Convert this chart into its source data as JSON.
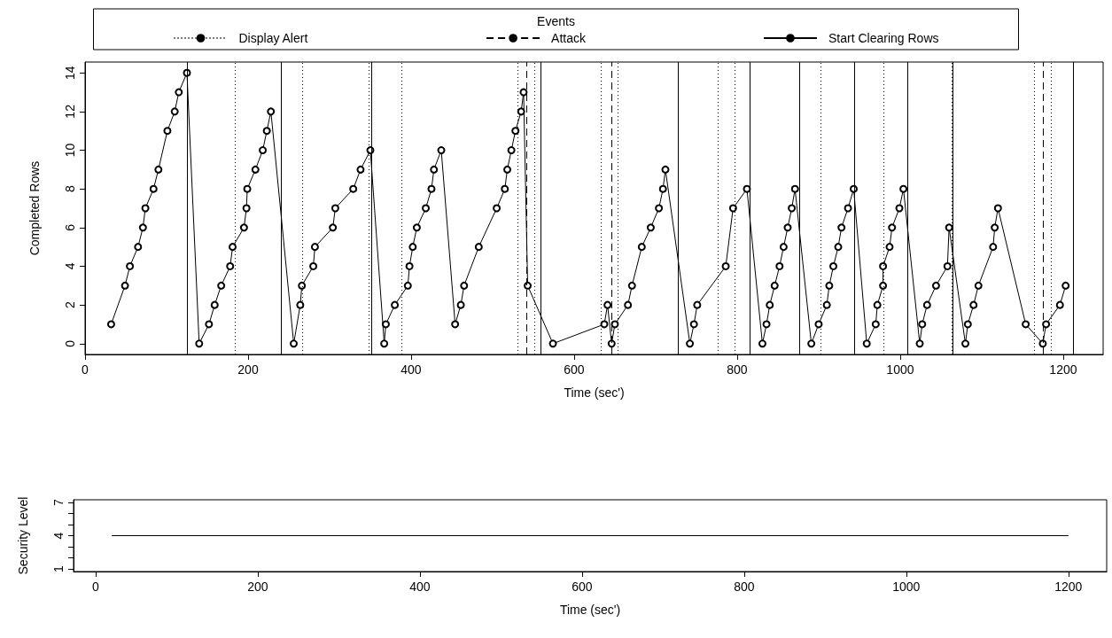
{
  "chart_data": [
    {
      "type": "line",
      "xlabel": "Time (sec')",
      "ylabel": "Completed Rows",
      "legend_title": "Events",
      "legend": "top",
      "marker": "circle",
      "line_style": "solid",
      "xlim": [
        0,
        1249
      ],
      "xticks": [
        0,
        200,
        400,
        600,
        800,
        1000,
        1200
      ],
      "ylim": [
        -0.56,
        14.56
      ],
      "yticks": [
        0,
        2,
        4,
        6,
        8,
        10,
        12,
        14
      ],
      "series": [
        {
          "color": "#000000",
          "x": [
            32,
            49,
            55,
            65,
            71,
            74,
            84,
            90,
            101,
            110,
            115,
            125,
            140,
            152,
            159,
            167,
            178,
            181,
            195,
            198,
            199,
            209,
            218,
            223,
            228,
            256,
            264,
            266,
            280,
            282,
            304,
            307,
            329,
            338,
            350,
            367,
            369,
            380,
            396,
            398,
            402,
            407,
            418,
            425,
            428,
            437,
            454,
            461,
            465,
            483,
            505,
            515,
            518,
            523,
            528,
            535,
            538,
            543,
            574,
            637,
            641,
            646,
            650,
            666,
            671,
            683,
            694,
            704,
            709,
            712,
            742,
            747,
            751,
            786,
            795,
            812,
            831,
            836,
            840,
            846,
            852,
            857,
            862,
            867,
            871,
            891,
            900,
            910,
            913,
            918,
            924,
            928,
            936,
            943,
            959,
            970,
            972,
            979,
            979,
            987,
            990,
            999,
            1004,
            1024,
            1027,
            1033,
            1044,
            1058,
            1060,
            1080,
            1083,
            1090,
            1096,
            1114,
            1116,
            1120,
            1154,
            1175,
            1179,
            1196,
            1203
          ],
          "values": [
            1,
            3,
            4,
            5,
            6,
            7,
            8,
            9,
            11,
            12,
            13,
            14,
            0,
            1,
            2,
            3,
            4,
            5,
            6,
            7,
            8,
            9,
            10,
            11,
            12,
            0,
            2,
            3,
            4,
            5,
            6,
            7,
            8,
            9,
            10,
            0,
            1,
            2,
            3,
            4,
            5,
            6,
            7,
            8,
            9,
            10,
            1,
            2,
            3,
            5,
            7,
            8,
            9,
            10,
            11,
            12,
            13,
            3,
            0,
            1,
            2,
            0,
            1,
            2,
            3,
            5,
            6,
            7,
            8,
            9,
            0,
            1,
            2,
            4,
            7,
            8,
            0,
            1,
            2,
            3,
            4,
            5,
            6,
            7,
            8,
            0,
            1,
            2,
            3,
            4,
            5,
            6,
            7,
            8,
            0,
            1,
            2,
            3,
            4,
            5,
            6,
            7,
            8,
            0,
            1,
            2,
            3,
            4,
            6,
            0,
            1,
            2,
            3,
            5,
            6,
            7,
            1,
            0,
            1,
            2,
            3
          ]
        }
      ],
      "ref_lines": [
        {
          "axis": "x",
          "value": 184,
          "label": "Display Alert",
          "line_style": "dotted",
          "color": "#000000"
        },
        {
          "axis": "x",
          "value": 267,
          "line_style": "dotted",
          "color": "#000000"
        },
        {
          "axis": "x",
          "value": 348,
          "line_style": "dotted",
          "color": "#000000"
        },
        {
          "axis": "x",
          "value": 388,
          "line_style": "dotted",
          "color": "#000000"
        },
        {
          "axis": "x",
          "value": 531,
          "line_style": "dotted",
          "color": "#000000"
        },
        {
          "axis": "x",
          "value": 551,
          "line_style": "dotted",
          "color": "#000000"
        },
        {
          "axis": "x",
          "value": 633,
          "line_style": "dotted",
          "color": "#000000"
        },
        {
          "axis": "x",
          "value": 654,
          "line_style": "dotted",
          "color": "#000000"
        },
        {
          "axis": "x",
          "value": 776,
          "line_style": "dotted",
          "color": "#000000"
        },
        {
          "axis": "x",
          "value": 797,
          "line_style": "dotted",
          "color": "#000000"
        },
        {
          "axis": "x",
          "value": 902,
          "line_style": "dotted",
          "color": "#000000"
        },
        {
          "axis": "x",
          "value": 980,
          "line_style": "dotted",
          "color": "#000000"
        },
        {
          "axis": "x",
          "value": 1063,
          "line_style": "dotted",
          "color": "#000000"
        },
        {
          "axis": "x",
          "value": 1164,
          "line_style": "dotted",
          "color": "#000000"
        },
        {
          "axis": "x",
          "value": 1185,
          "line_style": "dotted",
          "color": "#000000"
        },
        {
          "axis": "x",
          "value": 542,
          "label": "Attack",
          "line_style": "dashed",
          "color": "#000000"
        },
        {
          "axis": "x",
          "value": 646,
          "line_style": "dashed",
          "color": "#000000"
        },
        {
          "axis": "x",
          "value": 1175,
          "line_style": "dashed",
          "color": "#000000"
        },
        {
          "axis": "x",
          "value": 125,
          "label": "Start Clearing Rows",
          "line_style": "solid",
          "color": "#000000"
        },
        {
          "axis": "x",
          "value": 241,
          "line_style": "solid",
          "color": "#000000"
        },
        {
          "axis": "x",
          "value": 351,
          "line_style": "solid",
          "color": "#000000"
        },
        {
          "axis": "x",
          "value": 559,
          "line_style": "solid",
          "color": "#000000"
        },
        {
          "axis": "x",
          "value": 727,
          "line_style": "solid",
          "color": "#000000"
        },
        {
          "axis": "x",
          "value": 816,
          "line_style": "solid",
          "color": "#000000"
        },
        {
          "axis": "x",
          "value": 876,
          "line_style": "solid",
          "color": "#000000"
        },
        {
          "axis": "x",
          "value": 944,
          "line_style": "solid",
          "color": "#000000"
        },
        {
          "axis": "x",
          "value": 1009,
          "line_style": "solid",
          "color": "#000000"
        },
        {
          "axis": "x",
          "value": 1065,
          "line_style": "solid",
          "color": "#000000"
        },
        {
          "axis": "x",
          "value": 1212,
          "line_style": "solid",
          "color": "#000000"
        }
      ]
    },
    {
      "type": "line",
      "xlabel": "Time (sec')",
      "ylabel": "Security Level",
      "xlim": [
        -27.2,
        1247.2
      ],
      "xticks": [
        0,
        200,
        400,
        600,
        800,
        1000,
        1200
      ],
      "ylim": [
        0.76,
        7.24
      ],
      "yticks": [
        1,
        {
          "value": 2,
          "label": null
        },
        {
          "value": 3,
          "label": null
        },
        4,
        {
          "value": 5,
          "label": null
        },
        {
          "value": 6,
          "label": null
        },
        7
      ],
      "series": [
        {
          "color": "#000000",
          "x": [
            20,
            1200
          ],
          "values": [
            4,
            4
          ]
        }
      ]
    }
  ]
}
